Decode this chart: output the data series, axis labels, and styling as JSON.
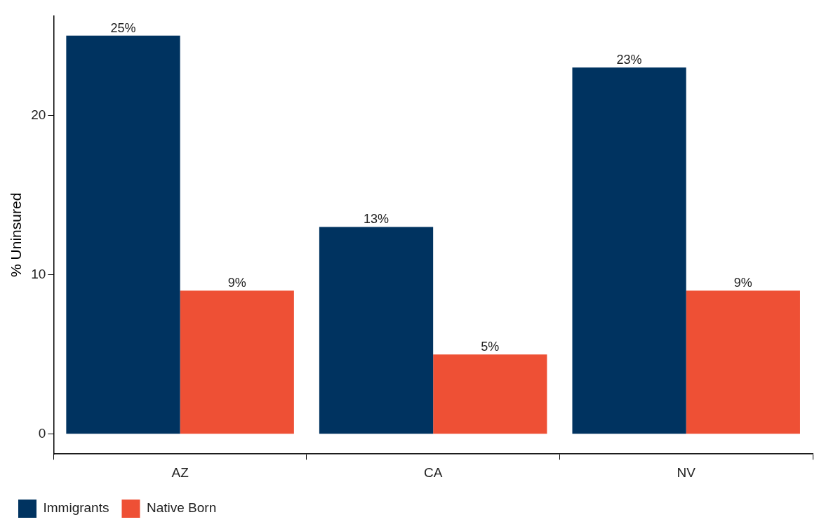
{
  "chart_data": {
    "type": "bar",
    "ylabel": "% Uninsured",
    "categories": [
      "AZ",
      "CA",
      "NV"
    ],
    "series": [
      {
        "name": "Immigrants",
        "color": "#003360",
        "values": [
          25,
          13,
          23
        ],
        "value_labels": [
          "25%",
          "13%",
          "23%"
        ]
      },
      {
        "name": "Native Born",
        "color": "#ee5035",
        "values": [
          9,
          5,
          9
        ],
        "value_labels": [
          "9%",
          "5%",
          "9%"
        ]
      }
    ],
    "ylim": [
      -1.25,
      26.25
    ],
    "yticks": [
      0,
      10,
      20
    ],
    "grid": false,
    "legend": "bottom left"
  }
}
